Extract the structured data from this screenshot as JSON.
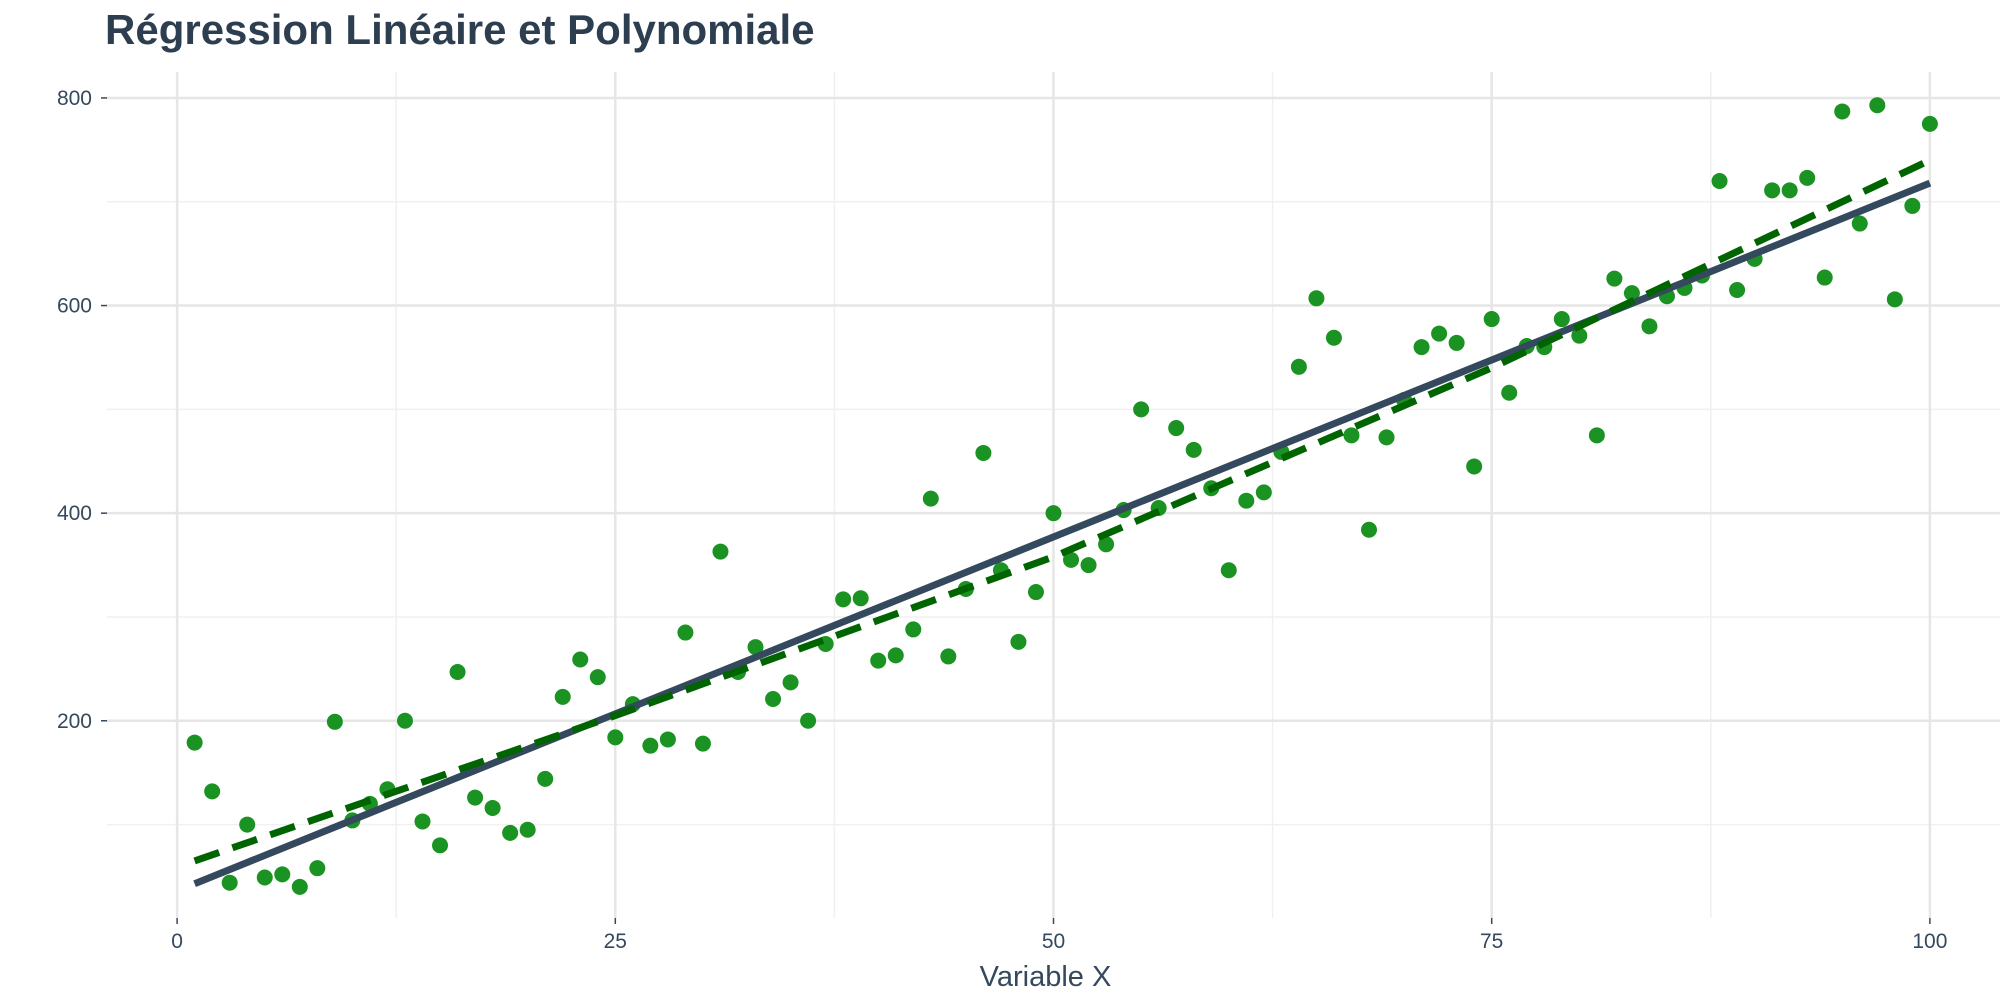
{
  "chart_data": {
    "type": "scatter",
    "title": "Régression Linéaire et Polynomiale",
    "xlabel": "Variable X",
    "ylabel": "",
    "xlim": [
      -4,
      104
    ],
    "ylim": [
      10,
      825
    ],
    "x_ticks": [
      0,
      25,
      50,
      75,
      100
    ],
    "x_tick_labels": [
      "0",
      "25",
      "50",
      "75",
      "100"
    ],
    "y_ticks": [
      200,
      400,
      600,
      800
    ],
    "y_tick_labels": [
      "200",
      "400",
      "600",
      "800"
    ],
    "grid": true,
    "legend": "none",
    "colors": {
      "points": "#1a9322",
      "linear": "#34495e",
      "polynomial": "#006400",
      "grid_major": "#e6e6e6",
      "grid_minor": "#f0f0f0",
      "text": "#34495e",
      "title": "#2c3e50"
    },
    "points": {
      "x": [
        1,
        2,
        3,
        4,
        5,
        6,
        7,
        8,
        9,
        10,
        11,
        12,
        13,
        14,
        15,
        16,
        17,
        18,
        19,
        20,
        21,
        22,
        23,
        24,
        25,
        26,
        27,
        28,
        29,
        30,
        31,
        32,
        33,
        34,
        35,
        36,
        37,
        38,
        39,
        40,
        41,
        42,
        43,
        44,
        45,
        46,
        47,
        48,
        49,
        50,
        51,
        52,
        53,
        54,
        55,
        56,
        57,
        58,
        59,
        60,
        61,
        62,
        63,
        64,
        65,
        66,
        67,
        68,
        69,
        70,
        71,
        72,
        73,
        74,
        75,
        76,
        77,
        78,
        79,
        80,
        81,
        82,
        83,
        84,
        85,
        86,
        87,
        88,
        89,
        90,
        91,
        92,
        93,
        94,
        95,
        96,
        97,
        98,
        99,
        100
      ],
      "y": [
        179,
        132,
        44,
        100,
        49,
        52,
        40,
        58,
        199,
        104,
        120,
        134,
        200,
        103,
        80,
        247,
        126,
        116,
        92,
        95,
        144,
        223,
        259,
        242,
        184,
        216,
        176,
        182,
        285,
        178,
        363,
        247,
        271,
        221,
        237,
        200,
        274,
        317,
        318,
        258,
        263,
        288,
        414,
        262,
        327,
        458,
        345,
        276,
        324,
        400,
        355,
        350,
        370,
        403,
        500,
        405,
        482,
        461,
        424,
        345,
        412,
        420,
        459,
        541,
        607,
        569,
        475,
        384,
        473,
        509,
        560,
        573,
        564,
        445,
        587,
        516,
        561,
        560,
        587,
        571,
        475,
        626,
        612,
        580,
        609,
        617,
        629,
        720,
        615,
        645,
        711,
        711,
        723,
        627,
        787,
        679,
        793,
        606,
        696,
        775
      ]
    },
    "lines": [
      {
        "style": "solid",
        "x": [
          1,
          100
        ],
        "y": [
          43,
          718
        ]
      },
      {
        "style": "dashed",
        "x": [
          1,
          25,
          50,
          75,
          100
        ],
        "y": [
          65,
          205,
          358,
          540,
          740
        ]
      }
    ]
  }
}
